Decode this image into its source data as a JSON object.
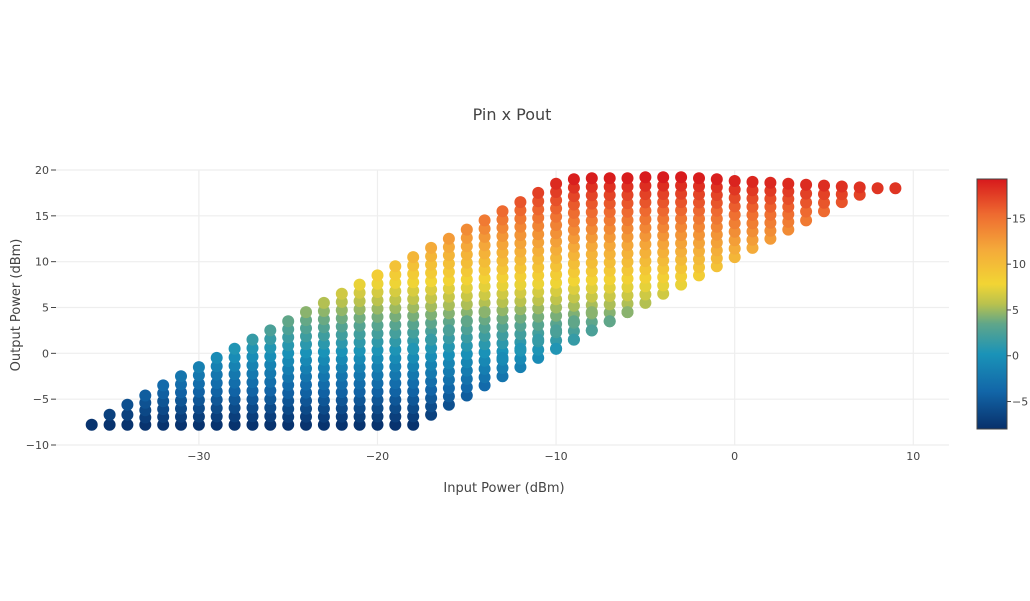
{
  "chart_data": {
    "type": "scatter",
    "title": "Pin x Pout",
    "xlabel": "Input Power (dBm)",
    "ylabel": "Output Power (dBm)",
    "xlim": [
      -38,
      12
    ],
    "ylim": [
      -10,
      20
    ],
    "x_ticks": [
      -30,
      -20,
      -10,
      0,
      10
    ],
    "x_tick_labels": [
      "−30",
      "−20",
      "−10",
      "0",
      "10"
    ],
    "y_ticks": [
      -10,
      -5,
      0,
      5,
      10,
      15,
      20
    ],
    "y_tick_labels": [
      "−10",
      "−5",
      "0",
      "5",
      "10",
      "15",
      "20"
    ],
    "grid": true,
    "colorbar": {
      "colorscale": "RdYlBu reversed",
      "range": [
        -8,
        19.3
      ],
      "ticks": [
        -5,
        0,
        5,
        10,
        15
      ],
      "tick_labels": [
        "−5",
        "0",
        "5",
        "10",
        "15"
      ],
      "placement": "right"
    },
    "marker_color_value": "Output Power (dBm)",
    "series": [
      {
        "x": [
          -36,
          -35,
          -34,
          -33,
          -32,
          -31,
          -30,
          -29,
          -28,
          -27,
          -26,
          -25,
          -24,
          -23,
          -22,
          -21,
          -20,
          -19,
          -18,
          -17,
          -16,
          -15,
          -14,
          -13,
          -12,
          -11,
          -10,
          -9,
          -8,
          -7,
          -6,
          -5,
          -4,
          -3,
          -2,
          -1,
          0,
          1,
          2,
          3,
          4,
          5,
          6,
          7,
          8,
          9
        ],
        "y_min": [
          -7.8,
          -7.8,
          -7.8,
          -7.8,
          -7.8,
          -7.8,
          -7.8,
          -7.8,
          -7.8,
          -7.8,
          -7.8,
          -7.8,
          -7.8,
          -7.8,
          -7.8,
          -7.8,
          -7.8,
          -7.8,
          -7.8,
          -6.7,
          -5.6,
          -4.6,
          -3.5,
          -2.5,
          -1.5,
          -0.5,
          0.5,
          1.5,
          2.5,
          3.5,
          4.5,
          5.5,
          6.5,
          7.5,
          8.5,
          9.5,
          10.5,
          11.5,
          12.5,
          13.5,
          14.5,
          15.5,
          16.5,
          17.3,
          18,
          18
        ],
        "y_max": [
          -7.8,
          -6.7,
          -5.6,
          -4.6,
          -3.5,
          -2.5,
          -1.5,
          -0.5,
          0.5,
          1.5,
          2.5,
          3.5,
          4.5,
          5.5,
          6.5,
          7.5,
          8.5,
          9.5,
          10.5,
          11.5,
          12.5,
          13.5,
          14.5,
          15.5,
          16.5,
          17.5,
          18.5,
          19,
          19.1,
          19.1,
          19.1,
          19.2,
          19.2,
          19.2,
          19.1,
          19,
          18.8,
          18.7,
          18.6,
          18.5,
          18.4,
          18.3,
          18.2,
          18.1,
          18,
          18
        ],
        "y_step": 0.9,
        "extra_points": [
          {
            "x": -18,
            "y": 0.5
          },
          {
            "x": -17,
            "y": 1.5
          },
          {
            "x": -16,
            "y": 2.5
          },
          {
            "x": -15,
            "y": 3.5
          },
          {
            "x": -14,
            "y": 4.5
          },
          {
            "x": -13,
            "y": -0.5
          },
          {
            "x": -12,
            "y": 0.5
          },
          {
            "x": -11,
            "y": 1.5
          },
          {
            "x": -10,
            "y": 2.5
          },
          {
            "x": -9,
            "y": 3.5
          },
          {
            "x": -8,
            "y": 4.5
          },
          {
            "x": -10,
            "y": 0.5
          },
          {
            "x": -9,
            "y": 1.5
          },
          {
            "x": -8,
            "y": 2.5
          },
          {
            "x": -7,
            "y": 3.5
          },
          {
            "x": -6,
            "y": 4.5
          }
        ]
      }
    ]
  }
}
